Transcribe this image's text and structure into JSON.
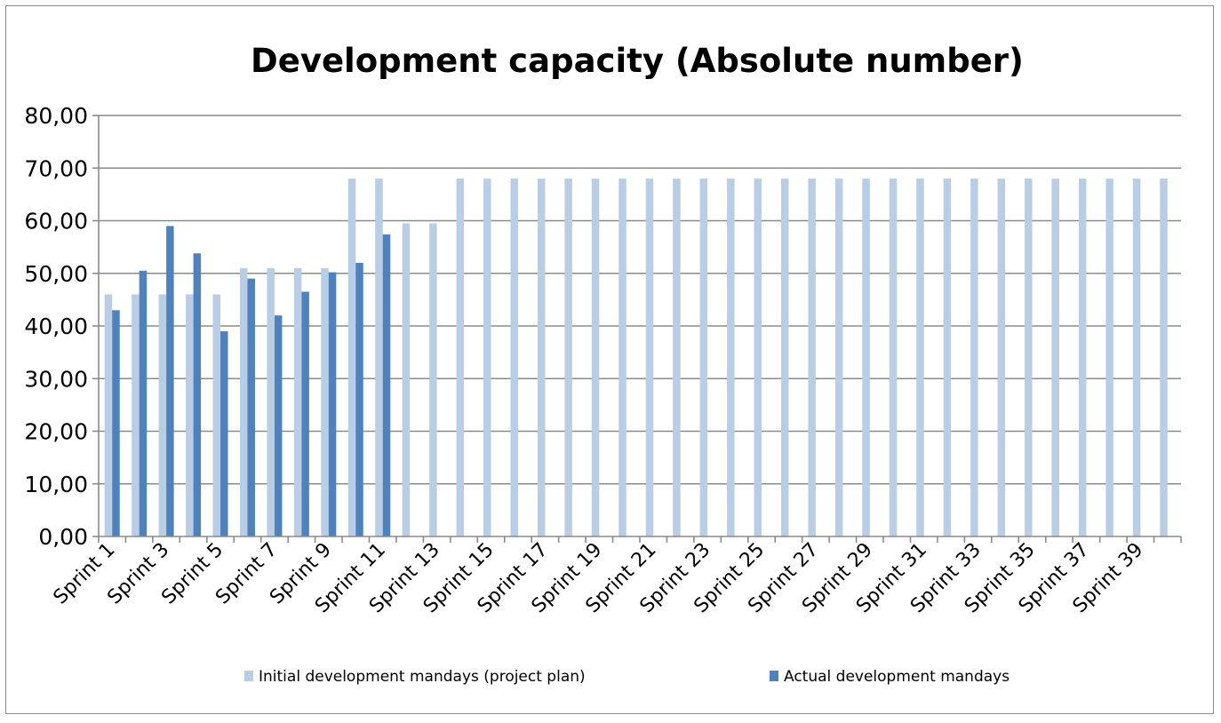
{
  "chart_data": {
    "type": "bar",
    "title": "Development capacity (Absolute number)",
    "xlabel": "",
    "ylabel": "",
    "ylim": [
      0,
      80
    ],
    "ytick_step": 10,
    "ytick_labels": [
      "0,00",
      "10,00",
      "20,00",
      "30,00",
      "40,00",
      "50,00",
      "60,00",
      "70,00",
      "80,00"
    ],
    "categories": [
      "Sprint 1",
      "Sprint 2",
      "Sprint 3",
      "Sprint 4",
      "Sprint 5",
      "Sprint 6",
      "Sprint 7",
      "Sprint 8",
      "Sprint 9",
      "Sprint 10",
      "Sprint 11",
      "Sprint 12",
      "Sprint 13",
      "Sprint 14",
      "Sprint 15",
      "Sprint 16",
      "Sprint 17",
      "Sprint 18",
      "Sprint 19",
      "Sprint 20",
      "Sprint 21",
      "Sprint 22",
      "Sprint 23",
      "Sprint 24",
      "Sprint 25",
      "Sprint 26",
      "Sprint 27",
      "Sprint 28",
      "Sprint 29",
      "Sprint 30",
      "Sprint 31",
      "Sprint 32",
      "Sprint 33",
      "Sprint 34",
      "Sprint 35",
      "Sprint 36",
      "Sprint 37",
      "Sprint 38",
      "Sprint 39",
      "Sprint 40"
    ],
    "visible_xtick_labels": [
      "Sprint 1",
      "Sprint 3",
      "Sprint 5",
      "Sprint 7",
      "Sprint 9",
      "Sprint 11",
      "Sprint 13",
      "Sprint 15",
      "Sprint 17",
      "Sprint 19",
      "Sprint 21",
      "Sprint 23",
      "Sprint 25",
      "Sprint 27",
      "Sprint 29",
      "Sprint 31",
      "Sprint 33",
      "Sprint 35",
      "Sprint 37",
      "Sprint 39"
    ],
    "series": [
      {
        "name": "Initial development mandays (project plan)",
        "color": "#b9cde5",
        "values": [
          46,
          46,
          46,
          46,
          46,
          51,
          51,
          51,
          51,
          68,
          68,
          59.5,
          59.5,
          68,
          68,
          68,
          68,
          68,
          68,
          68,
          68,
          68,
          68,
          68,
          68,
          68,
          68,
          68,
          68,
          68,
          68,
          68,
          68,
          68,
          68,
          68,
          68,
          68,
          68,
          68
        ]
      },
      {
        "name": "Actual development mandays",
        "color": "#4f81bd",
        "values": [
          43,
          50.5,
          59,
          53.8,
          39,
          49,
          42,
          46.5,
          50.2,
          52,
          57.4,
          null,
          null,
          null,
          null,
          null,
          null,
          null,
          null,
          null,
          null,
          null,
          null,
          null,
          null,
          null,
          null,
          null,
          null,
          null,
          null,
          null,
          null,
          null,
          null,
          null,
          null,
          null,
          null,
          null
        ]
      }
    ],
    "grid": true,
    "legend": "bottom"
  }
}
